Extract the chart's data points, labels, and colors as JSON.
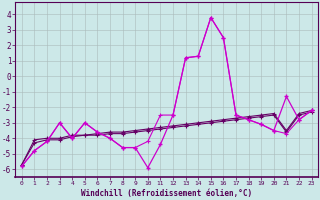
{
  "xlabel": "Windchill (Refroidissement éolien,°C)",
  "x": [
    0,
    1,
    2,
    3,
    4,
    5,
    6,
    7,
    8,
    9,
    10,
    11,
    12,
    13,
    14,
    15,
    16,
    17,
    18,
    19,
    20,
    21,
    22,
    23
  ],
  "line1": [
    -5.8,
    -4.8,
    -4.2,
    -3.0,
    -4.0,
    -3.0,
    -3.6,
    -4.0,
    -4.6,
    -4.6,
    -5.9,
    -4.4,
    -2.5,
    1.2,
    1.3,
    3.8,
    2.5,
    -2.5,
    -2.8,
    -3.1,
    -3.5,
    -1.3,
    -2.8,
    -2.2
  ],
  "line2": [
    -5.8,
    -4.8,
    -4.2,
    -3.0,
    -4.0,
    -3.0,
    -3.6,
    -4.0,
    -4.6,
    -4.6,
    -4.2,
    -2.5,
    -2.5,
    1.2,
    1.3,
    3.8,
    2.5,
    -2.5,
    -2.8,
    -3.1,
    -3.5,
    -3.7,
    -2.8,
    -2.2
  ],
  "line3": [
    -5.7,
    -4.3,
    -4.1,
    -4.1,
    -3.9,
    -3.8,
    -3.8,
    -3.7,
    -3.7,
    -3.6,
    -3.5,
    -3.4,
    -3.3,
    -3.2,
    -3.1,
    -3.0,
    -2.9,
    -2.8,
    -2.7,
    -2.6,
    -2.5,
    -3.6,
    -2.5,
    -2.3
  ],
  "line4": [
    -5.7,
    -4.1,
    -4.0,
    -4.0,
    -3.8,
    -3.8,
    -3.7,
    -3.6,
    -3.6,
    -3.5,
    -3.4,
    -3.3,
    -3.2,
    -3.1,
    -3.0,
    -2.9,
    -2.8,
    -2.7,
    -2.6,
    -2.5,
    -2.4,
    -3.5,
    -2.4,
    -2.2
  ],
  "bg_color": "#cce8e8",
  "grid_color": "#aabbbb",
  "line_color_bright": "#cc00cc",
  "line_color_dark": "#660066",
  "ylim": [
    -6.5,
    4.8
  ],
  "xlim": [
    -0.5,
    23.5
  ],
  "yticks": [
    -6,
    -5,
    -4,
    -3,
    -2,
    -1,
    0,
    1,
    2,
    3,
    4
  ],
  "xticks": [
    0,
    1,
    2,
    3,
    4,
    5,
    6,
    7,
    8,
    9,
    10,
    11,
    12,
    13,
    14,
    15,
    16,
    17,
    18,
    19,
    20,
    21,
    22,
    23
  ]
}
